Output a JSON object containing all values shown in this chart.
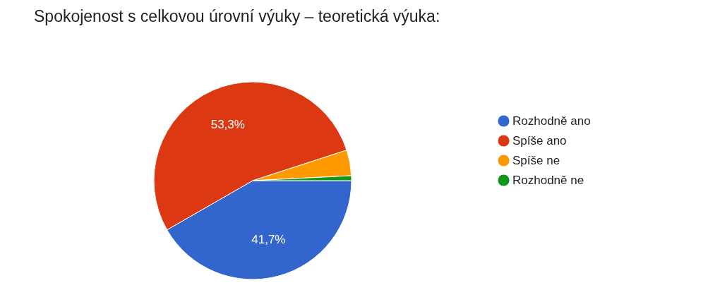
{
  "chart_data": {
    "type": "pie",
    "title": "Spokojenost s celkovou úrovní výuky – teoretická výuka:",
    "categories": [
      "Rozhodně ano",
      "Spíše ano",
      "Spíše ne",
      "Rozhodně ne"
    ],
    "values": [
      41.7,
      53.3,
      4.2,
      0.8
    ],
    "colors": [
      "#3366cc",
      "#dc3912",
      "#ff9900",
      "#109618"
    ],
    "value_labels": [
      "41,7%",
      "53,3%",
      null,
      null
    ],
    "legend": "right"
  }
}
